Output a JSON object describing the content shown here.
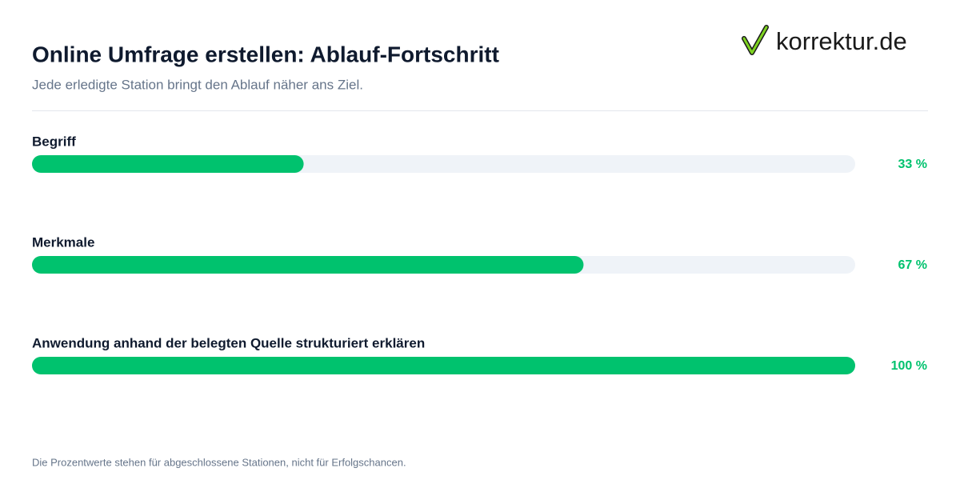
{
  "brand": "korrektur.de",
  "chart_data": {
    "type": "bar",
    "orientation": "horizontal",
    "title": "Online Umfrage erstellen: Ablauf-Fortschritt",
    "subtitle": "Jede erledigte Station bringt den Ablauf näher ans Ziel.",
    "categories": [
      "Begriff",
      "Merkmale",
      "Anwendung anhand der belegten Quelle strukturiert erklären"
    ],
    "values": [
      33,
      67,
      100
    ],
    "value_labels": [
      "33 %",
      "67 %",
      "100 %"
    ],
    "color": "#00c26e",
    "track_color": "#eff3f8",
    "xlim": [
      0,
      100
    ]
  },
  "footer": "Die Prozentwerte stehen für abgeschlossene Stationen, nicht für Erfolgschancen."
}
